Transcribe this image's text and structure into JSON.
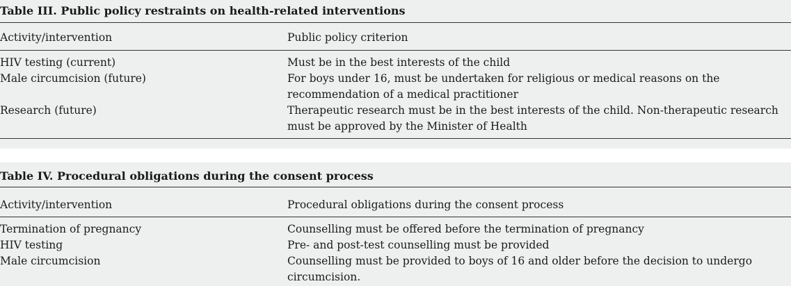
{
  "table3": {
    "caption": "Table III. Public policy restraints on health-related interventions",
    "headers": [
      "Activity/intervention",
      "Public policy criterion"
    ],
    "rows": [
      {
        "activity": "HIV testing (current)",
        "criterion": [
          "Must be in the best interests of the child"
        ]
      },
      {
        "activity": "Male circumcision (future)",
        "criterion": [
          "For boys under 16, must be undertaken for religious or medical reasons on the",
          "recommendation of a medical practitioner"
        ]
      },
      {
        "activity": "Research (future)",
        "criterion": [
          "Therapeutic research must be in the best interests of the child. Non-therapeutic research",
          "must be approved by the Minister of Health"
        ]
      }
    ]
  },
  "table4": {
    "caption": "Table IV. Procedural obligations during the consent process",
    "headers": [
      "Activity/intervention",
      "Procedural obligations during the consent process"
    ],
    "rows": [
      {
        "activity": "Termination of pregnancy",
        "obligation": [
          "Counselling must be offered before the termination of pregnancy"
        ]
      },
      {
        "activity": "HIV testing",
        "obligation": [
          "Pre- and post-test counselling must be provided"
        ]
      },
      {
        "activity": "Male circumcision",
        "obligation": [
          "Counselling must be provided to boys of 16 and older before the decision to undergo",
          "circumcision."
        ]
      }
    ]
  }
}
